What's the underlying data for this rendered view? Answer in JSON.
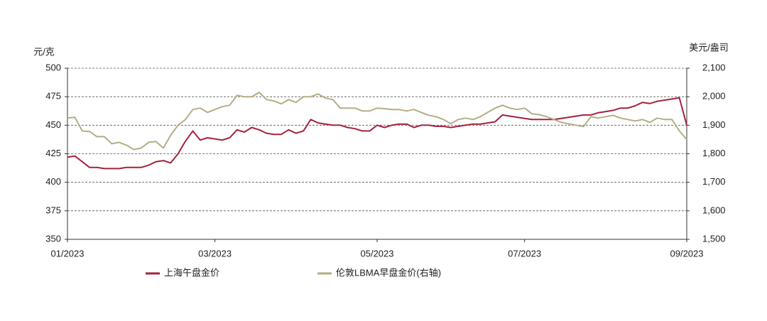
{
  "chart_data": {
    "type": "line",
    "y_label": "元/克",
    "y2_label": "美元/盎司",
    "categories": [
      "01/2023",
      null,
      null,
      null,
      null,
      null,
      null,
      null,
      null,
      null,
      null,
      null,
      null,
      null,
      null,
      null,
      null,
      null,
      null,
      null,
      "03/2023",
      null,
      null,
      null,
      null,
      null,
      null,
      null,
      null,
      null,
      null,
      null,
      null,
      null,
      null,
      null,
      null,
      null,
      null,
      null,
      null,
      null,
      "05/2023",
      null,
      null,
      null,
      null,
      null,
      null,
      null,
      null,
      null,
      null,
      null,
      null,
      null,
      null,
      null,
      null,
      null,
      null,
      null,
      "07/2023",
      null,
      null,
      null,
      null,
      null,
      null,
      null,
      null,
      null,
      null,
      null,
      null,
      null,
      null,
      null,
      null,
      null,
      null,
      null,
      null,
      null,
      "09/2023"
    ],
    "series": [
      {
        "name": "上海午盘金价",
        "color": "#a3223e",
        "axis": "y",
        "values": [
          422,
          423,
          418,
          413,
          413,
          412,
          412,
          412,
          413,
          413,
          413,
          415,
          418,
          419,
          417,
          425,
          436,
          445,
          437,
          439,
          438,
          437,
          439,
          446,
          444,
          448,
          446,
          443,
          442,
          442,
          446,
          443,
          445,
          455,
          452,
          451,
          450,
          450,
          448,
          447,
          445,
          445,
          450,
          448,
          450,
          451,
          451,
          448,
          450,
          450,
          449,
          449,
          448,
          449,
          450,
          451,
          451,
          452,
          453,
          459,
          458,
          457,
          456,
          455,
          455,
          455,
          455,
          456,
          457,
          458,
          459,
          459,
          461,
          462,
          463,
          465,
          465,
          467,
          470,
          469,
          471,
          472,
          473,
          474,
          450
        ]
      },
      {
        "name": "伦敦LBMA早盘金价(右轴)",
        "color": "#b3ae84",
        "axis": "y2",
        "values": [
          1925,
          1928,
          1880,
          1878,
          1860,
          1860,
          1835,
          1840,
          1830,
          1815,
          1820,
          1840,
          1843,
          1820,
          1865,
          1900,
          1920,
          1955,
          1960,
          1945,
          1955,
          1965,
          1970,
          2005,
          2000,
          2000,
          2015,
          1990,
          1985,
          1975,
          1990,
          1980,
          2000,
          2000,
          2010,
          1995,
          1990,
          1960,
          1960,
          1960,
          1950,
          1950,
          1960,
          1958,
          1955,
          1955,
          1950,
          1955,
          1945,
          1935,
          1930,
          1920,
          1905,
          1920,
          1925,
          1920,
          1930,
          1945,
          1960,
          1970,
          1960,
          1955,
          1960,
          1940,
          1937,
          1930,
          1920,
          1910,
          1905,
          1900,
          1895,
          1930,
          1925,
          1930,
          1935,
          1925,
          1920,
          1915,
          1920,
          1910,
          1925,
          1920,
          1920,
          1880,
          1850
        ]
      }
    ],
    "ylim": [
      350,
      500
    ],
    "yticks": [
      350,
      375,
      400,
      425,
      450,
      475,
      500
    ],
    "y2lim": [
      1500,
      2100
    ],
    "y2ticks": [
      {
        "value": 1500,
        "label": "1,500"
      },
      {
        "value": 1600,
        "label": "1,600"
      },
      {
        "value": 1700,
        "label": "1,700"
      },
      {
        "value": 1800,
        "label": "1,800"
      },
      {
        "value": 1900,
        "label": "1,900"
      },
      {
        "value": 2000,
        "label": "2,000"
      },
      {
        "value": 2100,
        "label": "2,100"
      }
    ],
    "grid": true
  }
}
